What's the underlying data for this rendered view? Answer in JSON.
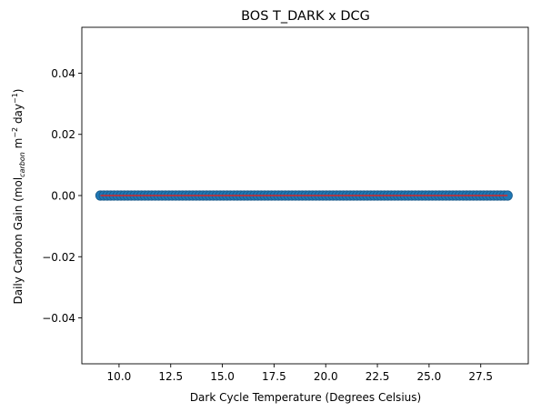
{
  "chart_data": {
    "type": "scatter",
    "title": "BOS T_DARK x DCG",
    "xlabel": "Dark Cycle Temperature (Degrees Celsius)",
    "ylabel": {
      "prefix": "Daily Carbon Gain (mol",
      "subscript": "carbon",
      "middle": " m",
      "sup1": "−2",
      "middle2": " day",
      "sup2": "−1",
      "suffix": ")"
    },
    "xlim": [
      8.2,
      29.8
    ],
    "ylim": [
      -0.055,
      0.055
    ],
    "xticks": [
      10.0,
      12.5,
      15.0,
      17.5,
      20.0,
      22.5,
      25.0,
      27.5
    ],
    "xtick_labels": [
      "10.0",
      "12.5",
      "15.0",
      "17.5",
      "20.0",
      "22.5",
      "25.0",
      "27.5"
    ],
    "yticks": [
      -0.04,
      -0.02,
      0.0,
      0.02,
      0.04
    ],
    "ytick_labels": [
      "−0.04",
      "−0.02",
      "0.00",
      "0.02",
      "0.04"
    ],
    "x_range": [
      9.1,
      28.8
    ],
    "n_points": 120,
    "y_value": 0.0,
    "grid": false,
    "colors": {
      "points": "#1f77b4",
      "point_edge": "#1a5a8a",
      "fit_line": "#d62728"
    }
  }
}
